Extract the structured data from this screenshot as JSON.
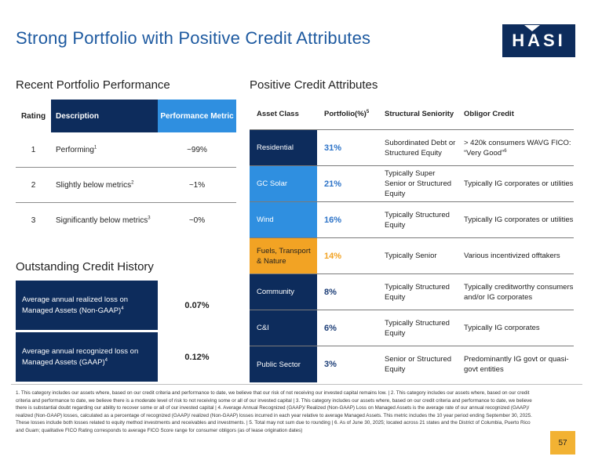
{
  "page": {
    "title": "Strong Portfolio with Positive Credit Attributes",
    "logo_text": "HASI",
    "page_number": "57"
  },
  "colors": {
    "navy": "#0d2c5c",
    "blue": "#2f8fe0",
    "orange": "#f2a324",
    "title_blue": "#1e5aa0"
  },
  "performance": {
    "heading": "Recent Portfolio Performance",
    "headers": {
      "rating": "Rating",
      "description": "Description",
      "metric": "Performance Metric"
    },
    "rows": [
      {
        "rating": "1",
        "description": "Performing",
        "sup": "1",
        "metric": "~99%"
      },
      {
        "rating": "2",
        "description": "Slightly below metrics",
        "sup": "2",
        "metric": "~1%"
      },
      {
        "rating": "3",
        "description": "Significantly below metrics",
        "sup": "3",
        "metric": "~0%"
      }
    ]
  },
  "credit_history": {
    "heading": "Outstanding Credit History",
    "rows": [
      {
        "label": "Average annual realized loss on Managed Assets (Non-GAAP)",
        "sup": "4",
        "value": "0.07%"
      },
      {
        "label": "Average annual recognized loss on Managed Assets (GAAP)",
        "sup": "4",
        "value": "0.12%"
      }
    ]
  },
  "attributes": {
    "heading": "Positive Credit Attributes",
    "headers": {
      "asset_class": "Asset Class",
      "portfolio": "Portfolio(%)",
      "portfolio_sup": "5",
      "seniority": "Structural Seniority",
      "obligor": "Obligor Credit"
    },
    "rows": [
      {
        "asset_class": "Residential",
        "portfolio": "31%",
        "seniority": "Subordinated Debt or Structured Equity",
        "obligor": "> 420k consumers WAVG FICO: “Very Good”",
        "obligor_sup": "6",
        "color": "#0d2c5c",
        "pct_color": "#2e74c8"
      },
      {
        "asset_class": "GC Solar",
        "portfolio": "21%",
        "seniority": "Typically Super Senior or Structured Equity",
        "obligor": "Typically IG corporates or utilities",
        "obligor_sup": "",
        "color": "#2f8fe0",
        "pct_color": "#2e74c8"
      },
      {
        "asset_class": "Wind",
        "portfolio": "16%",
        "seniority": "Typically Structured Equity",
        "obligor": "Typically IG corporates or utilities",
        "obligor_sup": "",
        "color": "#2f8fe0",
        "pct_color": "#2e74c8"
      },
      {
        "asset_class": "Fuels, Transport & Nature",
        "portfolio": "14%",
        "seniority": "Typically Senior",
        "obligor": "Various incentivized offtakers",
        "obligor_sup": "",
        "color": "#f2a324",
        "pct_color": "#f2a324"
      },
      {
        "asset_class": "Community",
        "portfolio": "8%",
        "seniority": "Typically Structured Equity",
        "obligor": "Typically creditworthy consumers and/or IG corporates",
        "obligor_sup": "",
        "color": "#0d2c5c",
        "pct_color": "#1e3f78"
      },
      {
        "asset_class": "C&I",
        "portfolio": "6%",
        "seniority": "Typically Structured Equity",
        "obligor": "Typically IG corporates",
        "obligor_sup": "",
        "color": "#0d2c5c",
        "pct_color": "#1e3f78"
      },
      {
        "asset_class": "Public Sector",
        "portfolio": "3%",
        "seniority": "Senior or Structured Equity",
        "obligor": "Predominantly IG govt or quasi-govt entities",
        "obligor_sup": "",
        "color": "#0d2c5c",
        "pct_color": "#1e3f78"
      }
    ]
  },
  "footnote": "1. This category includes our assets where, based on our credit criteria and performance to date, we believe that our risk of not receiving our invested capital remains low. | 2. This category includes our assets where, based on our credit criteria and performance to date, we believe there is a moderate level of risk to not receiving some or all of our invested capital | 3. This category includes our assets where, based on our credit criteria and performance to date, we believe there is substantial doubt regarding our ability to recover some or all of our invested capital | 4. Average Annual Recognized (GAAP)/ Realized (Non-GAAP) Loss on Managed Assets is the average rate of our annual recognized (GAAP)/ realized (Non-GAAP) losses, calculated as a percentage of recognized (GAAP)/ realized (Non-GAAP) losses incurred in each year relative to average Managed Assets. This metric includes the 10 year period ending September 30, 2025. These losses include both losses related to equity method investments and receivables and investments. | 5. Total may not sum due to rounding | 6. As of June 30, 2025; located across 21 states and the District of Columbia, Puerto Rico and Guam; qualitative FICO Rating corresponds to average FICO Score range for consumer obligors (as of lease origination dates)"
}
